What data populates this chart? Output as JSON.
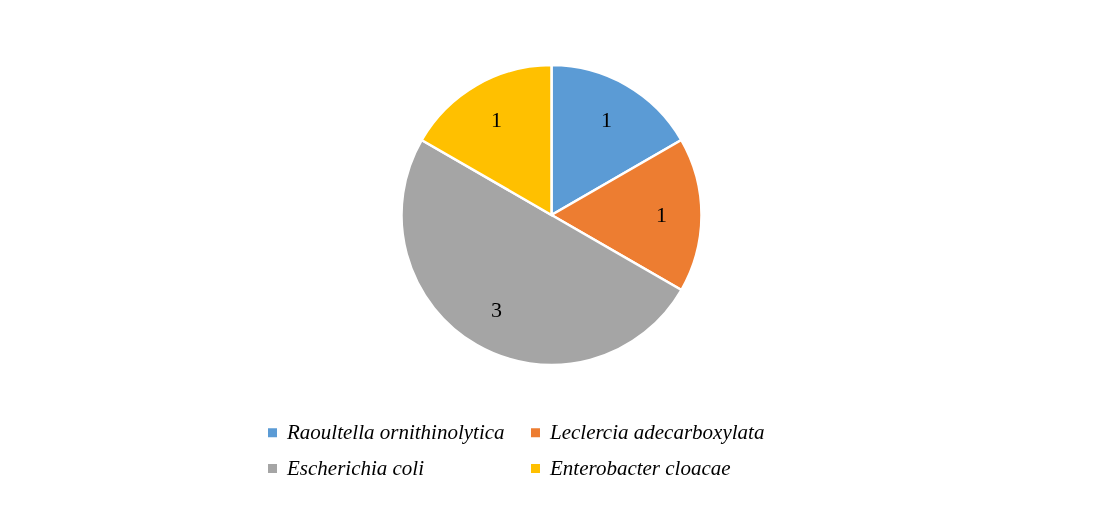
{
  "chart_data": {
    "type": "pie",
    "categories": [
      "Raoultella ornithinolytica",
      "Leclercia adecarboxylata",
      "Escherichia coli",
      "Enterobacter cloacae"
    ],
    "values": [
      1,
      1,
      3,
      1
    ],
    "colors": [
      "#5b9bd5",
      "#ed7d31",
      "#a5a5a5",
      "#ffc000"
    ],
    "data_labels": true,
    "legend": "bottom"
  }
}
